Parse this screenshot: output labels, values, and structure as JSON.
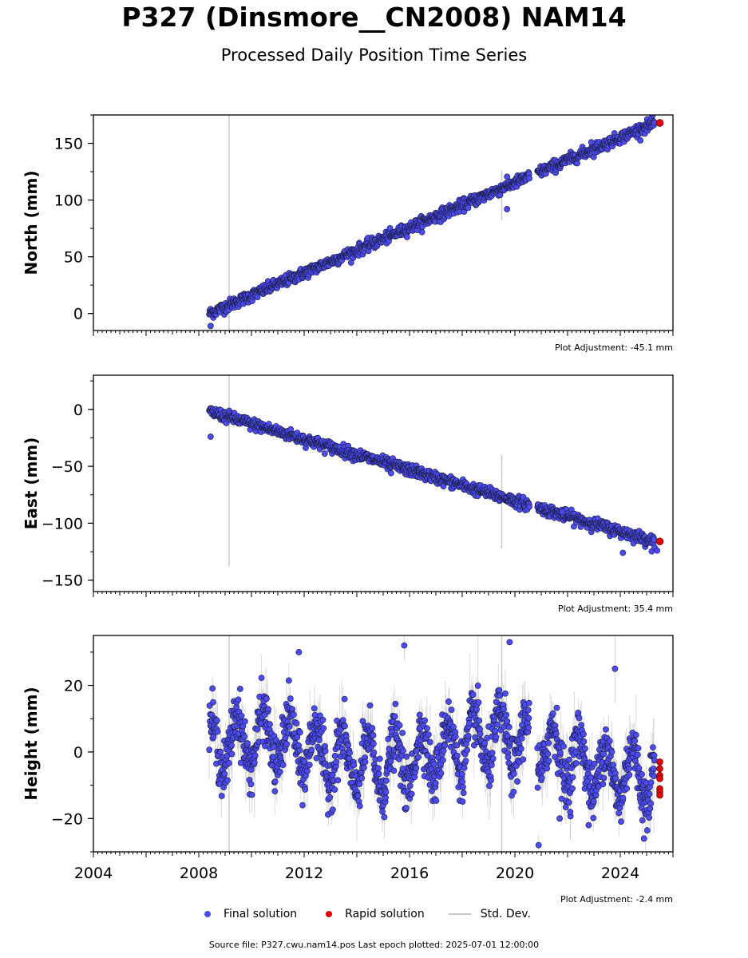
{
  "header": {
    "title": "P327 (Dinsmore__CN2008) NAM14",
    "subtitle": "Processed Daily Position Time Series"
  },
  "legend": {
    "final": "Final solution",
    "rapid": "Rapid solution",
    "stddev": "Std. Dev."
  },
  "footer": {
    "source": "Source file: P327.cwu.nam14.pos  Last epoch plotted: 2025-07-01 12:00:00"
  },
  "colors": {
    "final": "#4b4bf0",
    "rapid": "#e00000",
    "stddev": "#b4b4b4",
    "edge": "#1a1a3a"
  },
  "chart_data": [
    {
      "type": "scatter",
      "name": "north",
      "ylabel": "North (mm)",
      "adjustment": "Plot Adjustment: -45.1 mm",
      "xlim": [
        2004,
        2026
      ],
      "ylim": [
        -15,
        175
      ],
      "yticks": [
        0,
        50,
        100,
        150
      ],
      "trend": {
        "start": [
          2008.4,
          0
        ],
        "end": [
          2025.3,
          168
        ]
      },
      "offset": {
        "at": 2020.9,
        "value": 6
      },
      "noise": 2.5,
      "rapid": {
        "x": 2025.5,
        "y": 168
      },
      "final_x_range": [
        2008.4,
        2025.3
      ],
      "outliers": [
        [
          2008.45,
          -11
        ],
        [
          2019.7,
          92
        ],
        [
          2022.9,
          151
        ]
      ],
      "stddev_spikes": [
        [
          2009.15,
          -15,
          175
        ],
        [
          2019.5,
          82,
          126
        ]
      ]
    },
    {
      "type": "scatter",
      "name": "east",
      "ylabel": "East (mm)",
      "adjustment": "Plot Adjustment: 35.4 mm",
      "xlim": [
        2004,
        2026
      ],
      "ylim": [
        -160,
        30
      ],
      "yticks": [
        -150,
        -100,
        -50,
        0
      ],
      "trend": {
        "start": [
          2008.4,
          -2
        ],
        "end": [
          2025.3,
          -116
        ]
      },
      "offset": {
        "at": 2020.9,
        "value": -3
      },
      "noise": 2.5,
      "rapid": {
        "x": 2025.5,
        "y": -116
      },
      "final_x_range": [
        2008.4,
        2025.3
      ],
      "outliers": [
        [
          2008.45,
          -24
        ],
        [
          2015.3,
          -56
        ],
        [
          2024.1,
          -126
        ],
        [
          2025.4,
          -124
        ],
        [
          2021.8,
          -90
        ]
      ],
      "stddev_spikes": [
        [
          2009.15,
          -138,
          30
        ],
        [
          2019.5,
          -122,
          -40
        ]
      ]
    },
    {
      "type": "scatter",
      "name": "height",
      "ylabel": "Height (mm)",
      "adjustment": "Plot Adjustment: -2.4 mm",
      "xlim": [
        2004,
        2026
      ],
      "ylim": [
        -30,
        35
      ],
      "yticks": [
        -20,
        0,
        20
      ],
      "xticks": [
        2004,
        2008,
        2012,
        2016,
        2020,
        2024
      ],
      "seasonal_amp": 8,
      "noise": 4,
      "rapid_x": 2025.5,
      "rapid_y": [
        -3,
        -5,
        -7,
        -8,
        -11,
        -12,
        -13
      ],
      "final_x_range": [
        2008.4,
        2025.3
      ],
      "outliers": [
        [
          2011.8,
          30
        ],
        [
          2015.8,
          32
        ],
        [
          2019.8,
          33
        ],
        [
          2020.9,
          -28
        ],
        [
          2021.7,
          -20
        ],
        [
          2022.1,
          -18
        ],
        [
          2022.8,
          -22
        ],
        [
          2023.8,
          25
        ],
        [
          2024.9,
          -26
        ]
      ],
      "stddev_spikes": [
        [
          2009.15,
          -30,
          35
        ],
        [
          2019.5,
          -30,
          35
        ]
      ]
    }
  ]
}
